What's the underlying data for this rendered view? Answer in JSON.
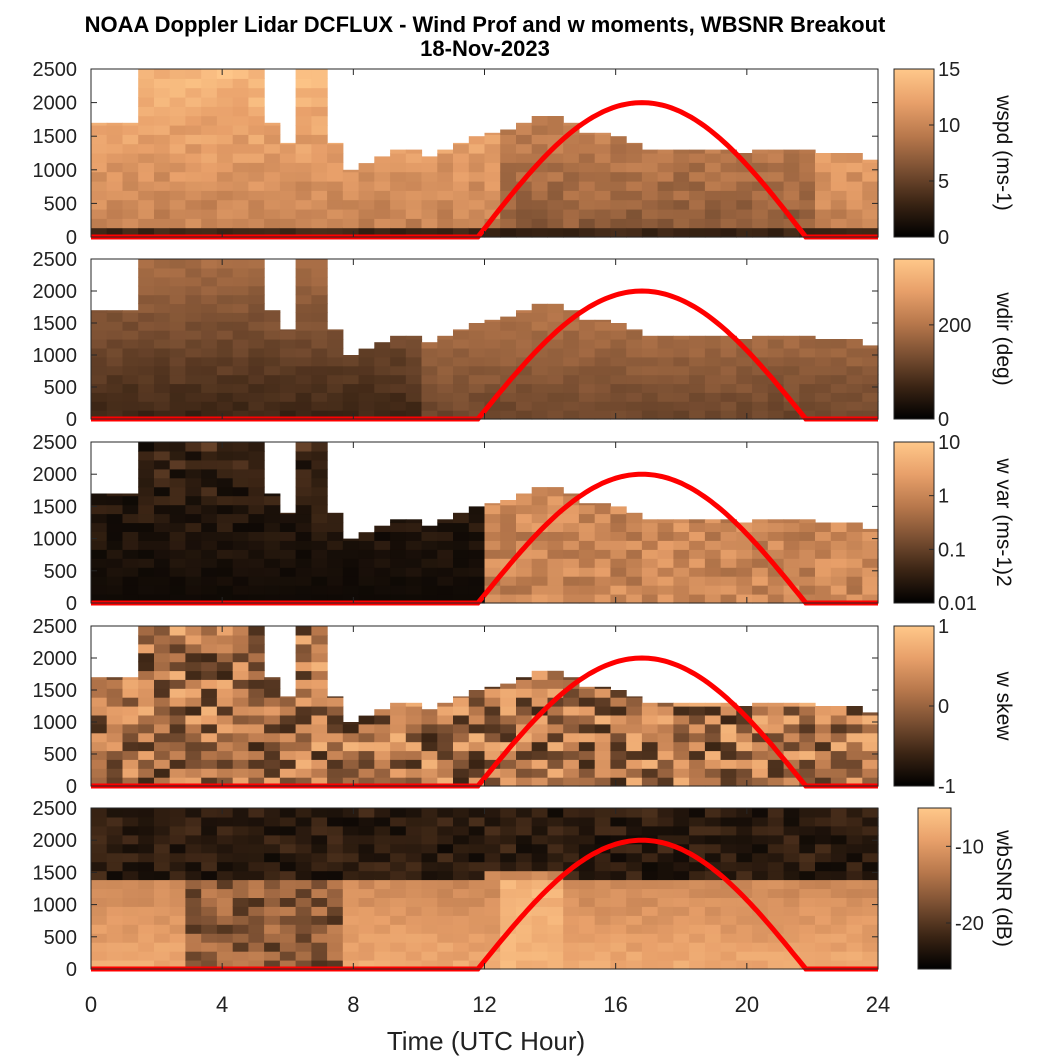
{
  "figure": {
    "title_line1": "NOAA Doppler Lidar DCFLUX - Wind Prof and w moments, WBSNR Breakout",
    "title_line2": "18-Nov-2023",
    "xlabel": "Time (UTC Hour)"
  },
  "colors": {
    "colormap": [
      "#000000",
      "#3a2414",
      "#7a4f32",
      "#b8784c",
      "#e8a06a",
      "#ffc88a"
    ],
    "solar_curve": "#ff0000",
    "background": "#ffffff"
  },
  "chart_data": [
    {
      "type": "heatmap",
      "name": "wspd",
      "colorbar_label": "wspd (ms-1)",
      "colorbar_ticks": [
        "0",
        "5",
        "10",
        "15"
      ],
      "clim": [
        0,
        15
      ],
      "xlim": [
        0,
        24
      ],
      "ylim": [
        0,
        2500
      ],
      "xticks": [
        "0",
        "4",
        "8",
        "12",
        "16",
        "20",
        "24"
      ],
      "yticks": [
        "0",
        "500",
        "1000",
        "1500",
        "2000",
        "2500"
      ],
      "column_top_heights_m": [
        1700,
        1700,
        1700,
        2500,
        2500,
        2500,
        2500,
        2500,
        2500,
        2500,
        2500,
        1700,
        1400,
        2500,
        2500,
        1400,
        1000,
        1100,
        1200,
        1300,
        1300,
        1200,
        1300,
        1400,
        1500,
        1550,
        1600,
        1700,
        1800,
        1800,
        1700,
        1550,
        1550,
        1500,
        1400,
        1300,
        1300,
        1300,
        1300,
        1300,
        1300,
        1250,
        1300,
        1300,
        1300,
        1300,
        1250,
        1250,
        1250,
        1150
      ],
      "solar_curve_peak_hour": 16.9,
      "solar_curve_peak_value": 2000,
      "solar_curve_start_hour": 11.8,
      "solar_curve_end_hour": 21.8
    },
    {
      "type": "heatmap",
      "name": "wdir",
      "colorbar_label": "wdir (deg)",
      "colorbar_ticks": [
        "0",
        "200"
      ],
      "clim": [
        0,
        340
      ],
      "xlim": [
        0,
        24
      ],
      "ylim": [
        0,
        2500
      ],
      "yticks": [
        "0",
        "500",
        "1000",
        "1500",
        "2000",
        "2500"
      ]
    },
    {
      "type": "heatmap",
      "name": "w var",
      "colorbar_label": "w var (ms-1)2",
      "colorbar_ticks": [
        "0.01",
        "0.1",
        "1",
        "10"
      ],
      "clim": [
        0.01,
        10
      ],
      "scale": "log",
      "xlim": [
        0,
        24
      ],
      "ylim": [
        0,
        2500
      ],
      "yticks": [
        "0",
        "500",
        "1000",
        "1500",
        "2000",
        "2500"
      ]
    },
    {
      "type": "heatmap",
      "name": "w skew",
      "colorbar_label": "w skew",
      "colorbar_ticks": [
        "-1",
        "0",
        "1"
      ],
      "clim": [
        -1,
        1
      ],
      "xlim": [
        0,
        24
      ],
      "ylim": [
        0,
        2500
      ],
      "yticks": [
        "0",
        "500",
        "1000",
        "1500",
        "2000",
        "2500"
      ]
    },
    {
      "type": "heatmap",
      "name": "wbSNR",
      "colorbar_label": "wbSNR (dB)",
      "colorbar_ticks": [
        "-20",
        "-10"
      ],
      "clim": [
        -26,
        -5
      ],
      "xlim": [
        0,
        24
      ],
      "ylim": [
        0,
        2500
      ],
      "yticks": [
        "0",
        "500",
        "1000",
        "1500",
        "2000",
        "2500"
      ]
    }
  ]
}
